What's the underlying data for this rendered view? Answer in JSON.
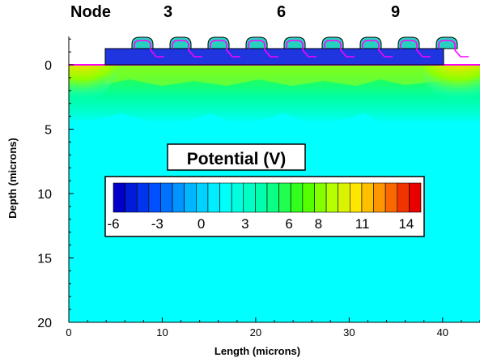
{
  "header": {
    "node_title": "Node",
    "node_numbers": [
      "3",
      "6",
      "9"
    ]
  },
  "axes": {
    "xlabel": "Length (microns)",
    "ylabel": "Depth (microns)",
    "x_ticks": [
      "0",
      "10",
      "20",
      "30",
      "40"
    ],
    "y_ticks": [
      "0",
      "5",
      "10",
      "15",
      "20"
    ]
  },
  "legend": {
    "title": "Potential (V)",
    "tick_labels": [
      "-6",
      "-3",
      "0",
      "3",
      "6",
      "8",
      "11",
      "14"
    ],
    "min": -6,
    "max": 15,
    "steps": 26
  },
  "chart_data": {
    "type": "heatmap",
    "quantity": "Potential (V)",
    "x_range_microns": [
      0,
      44
    ],
    "y_range_microns": [
      0,
      20
    ],
    "y_inverted": true,
    "gate_nodes": [
      3,
      6,
      9
    ],
    "gate_count": 9,
    "bulk_potential_v": 0,
    "surface_channel_peak_v": 9,
    "edge_region_peak_v": 14,
    "colors": {
      "background": "#00ffff",
      "oxide": "#1f35e0",
      "gate": "#28d0c0",
      "gate_outline": "#ff00ff",
      "surface_line": "#ff00ff"
    }
  }
}
